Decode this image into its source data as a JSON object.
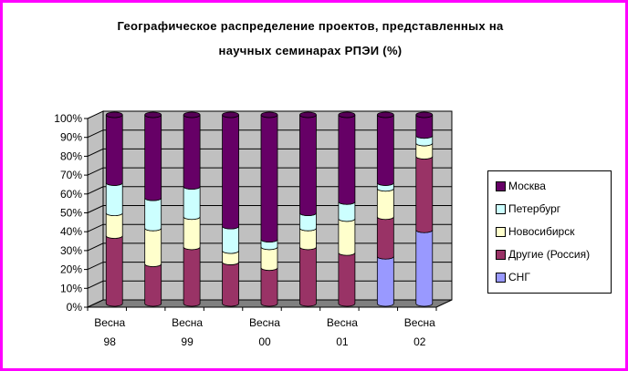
{
  "chart_data": {
    "type": "bar",
    "stacked": true,
    "percent": true,
    "title_line1": "Географическое распределение проектов, представленных на",
    "title_line2": "научных семинарах РПЭИ (%)",
    "categories": [
      "Весна 98",
      "",
      "Весна 99",
      "",
      "Весна 00",
      "",
      "Весна 01",
      "",
      "Весна 02"
    ],
    "tick_labels": [
      {
        "top": "Весна",
        "bottom": "98"
      },
      {
        "top": "Весна",
        "bottom": "99"
      },
      {
        "top": "Весна",
        "bottom": "00"
      },
      {
        "top": "Весна",
        "bottom": "01"
      },
      {
        "top": "Весна",
        "bottom": "02"
      }
    ],
    "series": [
      {
        "name": "СНГ",
        "color": "#9999ff",
        "values": [
          0,
          0,
          0,
          0,
          0,
          0,
          0,
          25,
          39
        ]
      },
      {
        "name": "Другие (Россия)",
        "color": "#993366",
        "values": [
          36,
          21,
          30,
          22,
          19,
          30,
          27,
          21,
          39
        ]
      },
      {
        "name": "Новосибирск",
        "color": "#ffffcc",
        "values": [
          12,
          19,
          16,
          6,
          11,
          10,
          18,
          15,
          7
        ]
      },
      {
        "name": "Петербург",
        "color": "#ccffff",
        "values": [
          16,
          16,
          16,
          13,
          4,
          8,
          9,
          3,
          4
        ]
      },
      {
        "name": "Москва",
        "color": "#660066",
        "values": [
          36,
          44,
          38,
          59,
          66,
          52,
          46,
          36,
          11
        ]
      }
    ],
    "yticks": [
      "0%",
      "10%",
      "20%",
      "30%",
      "40%",
      "50%",
      "60%",
      "70%",
      "80%",
      "90%",
      "100%"
    ],
    "ylim": [
      0,
      100
    ],
    "grid": true,
    "wall_color": "#c0c0c0",
    "floor_color": "#808080",
    "legend_position": "right"
  },
  "legend": [
    {
      "label": "Москва",
      "color": "#660066"
    },
    {
      "label": "Петербург",
      "color": "#ccffff"
    },
    {
      "label": "Новосибирск",
      "color": "#ffffcc"
    },
    {
      "label": "Другие (Россия)",
      "color": "#993366"
    },
    {
      "label": "СНГ",
      "color": "#9999ff"
    }
  ]
}
